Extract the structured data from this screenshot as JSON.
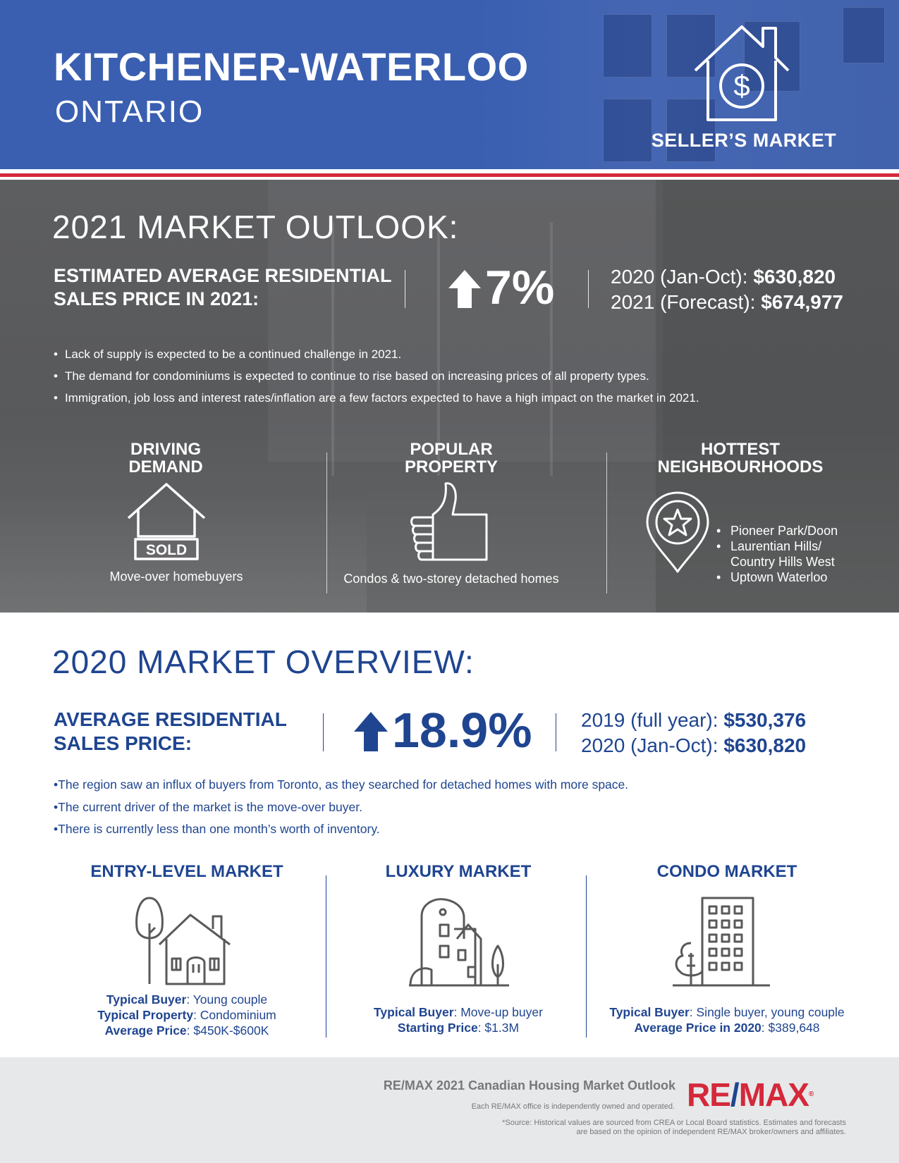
{
  "header": {
    "city": "KITCHENER-WATERLOO",
    "province": "ONTARIO",
    "market_type": "SELLER’S MARKET",
    "market_icon": "house-dollar-icon"
  },
  "outlook": {
    "title": "2021 MARKET OUTLOOK:",
    "label": "ESTIMATED AVERAGE RESIDENTIAL SALES PRICE IN 2021:",
    "percent": "7%",
    "stat1_label": "2020 (Jan-Oct): ",
    "stat1_value": "$630,820",
    "stat2_label": "2021 (Forecast): ",
    "stat2_value": "$674,977",
    "bullets": [
      "Lack of supply is expected to be a continued challenge in 2021.",
      "The demand for condominiums is expected to continue to rise based on increasing prices of all property types.",
      "Immigration, job loss and interest rates/inflation are a few factors expected to have a high impact on the market in 2021."
    ],
    "driving": {
      "line1": "DRIVING",
      "line2": "DEMAND",
      "sold": "SOLD",
      "text": "Move-over homebuyers"
    },
    "popular": {
      "line1": "POPULAR",
      "line2": "PROPERTY",
      "text": "Condos & two-storey detached homes"
    },
    "hottest": {
      "line1": "HOTTEST",
      "line2": "NEIGHBOURHOODS",
      "items": [
        "Pioneer Park/Doon",
        "Laurentian Hills/",
        "Country Hills West",
        "Uptown Waterloo"
      ]
    }
  },
  "overview": {
    "title": "2020 MARKET OVERVIEW:",
    "label_line1": "AVERAGE RESIDENTIAL",
    "label_line2": "SALES PRICE:",
    "percent": "18.9%",
    "stat1_label": "2019 (full year): ",
    "stat1_value": "$530,376",
    "stat2_label": "2020 (Jan-Oct): ",
    "stat2_value": "$630,820",
    "bullets": [
      "The region saw an influx of buyers from Toronto, as they searched for detached homes with more space.",
      "The current driver of the market is the move-over buyer.",
      "There is currently less than one month’s worth of inventory."
    ],
    "entry": {
      "title": "ENTRY-LEVEL MARKET",
      "k1": "Typical Buyer",
      "v1": ": Young couple",
      "k2": "Typical Property",
      "v2": ": Condominium",
      "k3": "Average Price",
      "v3": ": $450K-$600K"
    },
    "luxury": {
      "title": "LUXURY MARKET",
      "k1": "Typical Buyer",
      "v1": ": Move-up buyer",
      "k2": "Starting Price",
      "v2": ": $1.3M"
    },
    "condo": {
      "title": "CONDO MARKET",
      "k1": "Typical Buyer",
      "v1": ": Single buyer, young couple",
      "k2": "Average Price in 2020",
      "v2": ": $389,648"
    }
  },
  "footer": {
    "title": "RE/MAX 2021 Canadian Housing Market Outlook",
    "owned": "Each RE/MAX office is independently owned and operated.",
    "source_line1": "*Source: Historical values are sourced from CREA or Local Board statistics. Estimates and forecasts",
    "source_line2": "are based on the opinion of independent RE/MAX broker/owners and affiliates.",
    "logo_re": "RE",
    "logo_slash": "/",
    "logo_max": "MAX",
    "logo_reg": "®"
  },
  "colors": {
    "brand_blue": "#1f4590",
    "header_blue": "#3a5fb1",
    "remax_red": "#d4293b",
    "gray": "#58595b"
  }
}
